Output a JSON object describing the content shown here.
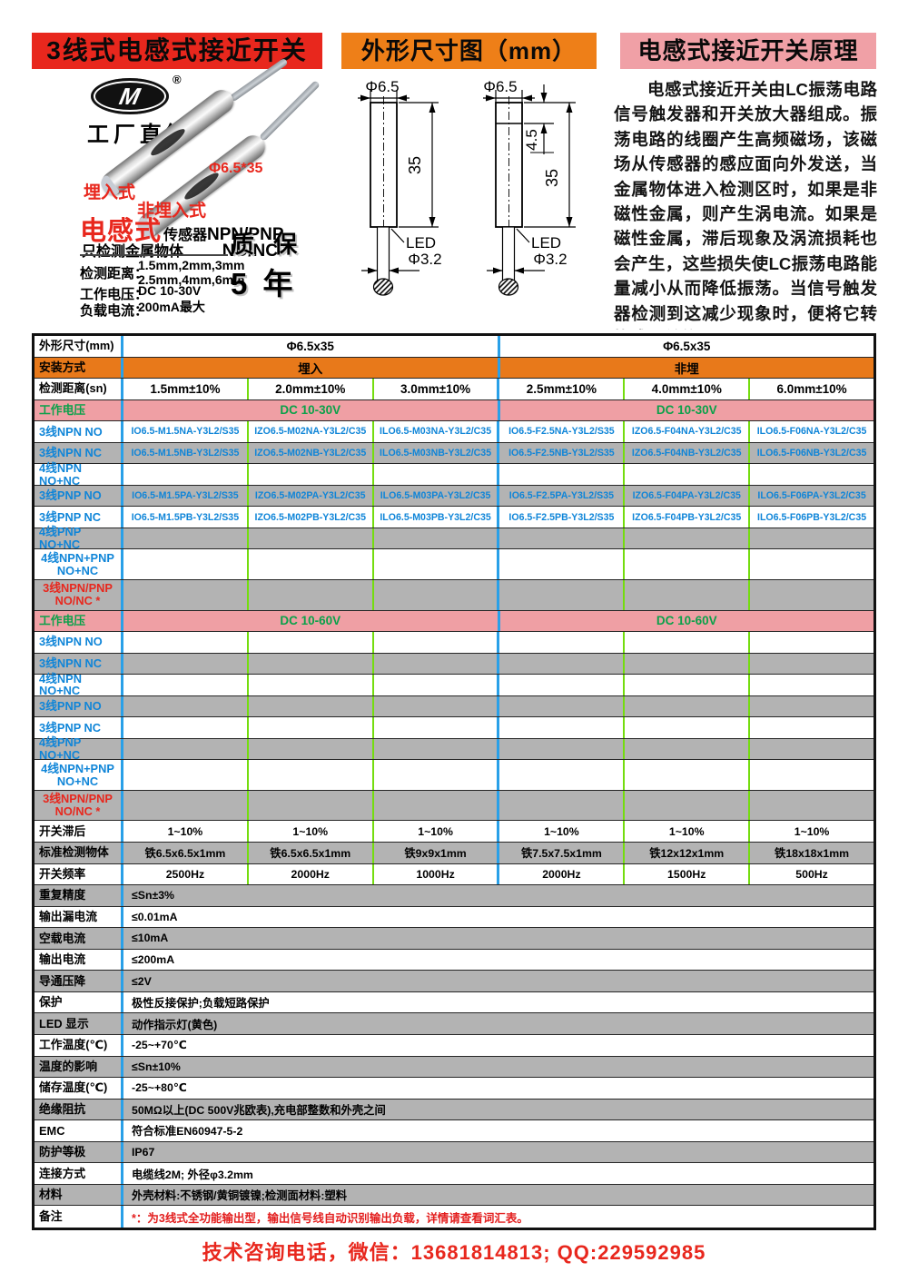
{
  "colors": {
    "header_red": "#e8271d",
    "header_orange": "#ee7f18",
    "header_pink": "#f0a0a6",
    "accent_red": "#e8271d",
    "row_gray": "#b3b3b3",
    "row_orange": "#e8791a",
    "row_pink": "#ef9fa4",
    "model_blue": "#0f85d8",
    "voltage_green": "#0ba14a",
    "divider_blue": "#29a0e8",
    "divider_green": "#74dd0e"
  },
  "headers": {
    "left": "3线式电感式接近开关",
    "mid": "外形尺寸图（mm）",
    "right": "电感式接近开关原理"
  },
  "brand": {
    "logo_text": "M",
    "registered": "®",
    "slogan": "工厂直销"
  },
  "product": {
    "flush": "埋入式",
    "nonflush": "非埋入式",
    "size": "Φ6.5*35",
    "type_big": "电感式",
    "type_small": "传感器",
    "outputs": "NPN/PNP",
    "detect": "只检测金属物体",
    "contacts": "NO/NC",
    "warranty_line1": "质 保",
    "warranty_line2": "5 年",
    "specs": [
      {
        "label": "检测距离：",
        "value": "1.5mm,2mm,3mm\n2.5mm,4mm,6mm"
      },
      {
        "label": "工作电压：",
        "value": "DC 10-30V"
      },
      {
        "label": "负载电流：",
        "value": "200mA最大"
      }
    ]
  },
  "dims": {
    "a": {
      "dia": "Φ6.5",
      "length": "35",
      "led": "LED",
      "cable": "Φ3.2"
    },
    "b": {
      "dia": "Φ6.5",
      "head": "4.5",
      "length": "35",
      "led": "LED",
      "cable": "Φ3.2"
    }
  },
  "principle": {
    "text": "电感式接近开关由LC振荡电路信号触发器和开关放大器组成。振荡电路的线圈产生高频磁场，该磁场从传感器的感应面向外发送，当金属物体进入检测区时，如果是非磁性金属，则产生涡电流。如果是磁性金属，滞后现象及涡流损耗也会产生，这些损失使LC振荡电路能量减小从而降低振荡。当信号触发器检测到这减少现象时，便将它转换成开关信号。"
  },
  "table": {
    "rows": [
      {
        "label": "外形尺寸(mm)",
        "bg": "w",
        "cells": [
          {
            "t": "Φ6.5x35",
            "s": 3,
            "c": "big"
          },
          {
            "t": "Φ6.5x35",
            "s": 3,
            "c": "big"
          }
        ]
      },
      {
        "label": "安装方式",
        "bg": "orange",
        "cells": [
          {
            "t": "埋入",
            "s": 3,
            "c": "big"
          },
          {
            "t": "非埋",
            "s": 3,
            "c": "big"
          }
        ]
      },
      {
        "label": "检测距离(sn)",
        "bg": "w",
        "cells": [
          {
            "t": "1.5mm±10%",
            "c": "big"
          },
          {
            "t": "2.0mm±10%",
            "c": "big"
          },
          {
            "t": "3.0mm±10%",
            "c": "big"
          },
          {
            "t": "2.5mm±10%",
            "c": "big"
          },
          {
            "t": "4.0mm±10%",
            "c": "big"
          },
          {
            "t": "6.0mm±10%",
            "c": "big"
          }
        ]
      },
      {
        "label": "工作电压",
        "lc": "green",
        "bg": "pink",
        "cells": [
          {
            "t": "DC 10-30V",
            "s": 3,
            "c": "green"
          },
          {
            "t": "DC 10-30V",
            "s": 3,
            "c": "green"
          }
        ]
      },
      {
        "label": "3线NPN NO",
        "lc": "blue",
        "bg": "w",
        "cells": [
          {
            "t": "IO6.5-M1.5NA-Y3L2/S35",
            "c": "blue"
          },
          {
            "t": "IZO6.5-M02NA-Y3L2/C35",
            "c": "blue"
          },
          {
            "t": "ILO6.5-M03NA-Y3L2/C35",
            "c": "blue"
          },
          {
            "t": "IO6.5-F2.5NA-Y3L2/S35",
            "c": "blue"
          },
          {
            "t": "IZO6.5-F04NA-Y3L2/C35",
            "c": "blue"
          },
          {
            "t": "ILO6.5-F06NA-Y3L2/C35",
            "c": "blue"
          }
        ]
      },
      {
        "label": "3线NPN NC",
        "lc": "blue",
        "bg": "g",
        "cells": [
          {
            "t": "IO6.5-M1.5NB-Y3L2/S35",
            "c": "blue"
          },
          {
            "t": "IZO6.5-M02NB-Y3L2/C35",
            "c": "blue"
          },
          {
            "t": "ILO6.5-M03NB-Y3L2/C35",
            "c": "blue"
          },
          {
            "t": "IO6.5-F2.5NB-Y3L2/S35",
            "c": "blue"
          },
          {
            "t": "IZO6.5-F04NB-Y3L2/C35",
            "c": "blue"
          },
          {
            "t": "ILO6.5-F06NB-Y3L2/C35",
            "c": "blue"
          }
        ]
      },
      {
        "label": "4线NPN NO+NC",
        "lc": "blue",
        "bg": "w",
        "cells": [
          {},
          {},
          {},
          {},
          {},
          {}
        ]
      },
      {
        "label": "3线PNP NO",
        "lc": "blue",
        "bg": "g",
        "cells": [
          {
            "t": "IO6.5-M1.5PA-Y3L2/S35",
            "c": "blue"
          },
          {
            "t": "IZO6.5-M02PA-Y3L2/C35",
            "c": "blue"
          },
          {
            "t": "ILO6.5-M03PA-Y3L2/C35",
            "c": "blue"
          },
          {
            "t": "IO6.5-F2.5PA-Y3L2/S35",
            "c": "blue"
          },
          {
            "t": "IZO6.5-F04PA-Y3L2/C35",
            "c": "blue"
          },
          {
            "t": "ILO6.5-F06PA-Y3L2/C35",
            "c": "blue"
          }
        ]
      },
      {
        "label": "3线PNP NC",
        "lc": "blue",
        "bg": "w",
        "cells": [
          {
            "t": "IO6.5-M1.5PB-Y3L2/S35",
            "c": "blue"
          },
          {
            "t": "IZO6.5-M02PB-Y3L2/C35",
            "c": "blue"
          },
          {
            "t": "ILO6.5-M03PB-Y3L2/C35",
            "c": "blue"
          },
          {
            "t": "IO6.5-F2.5PB-Y3L2/S35",
            "c": "blue"
          },
          {
            "t": "IZO6.5-F04PB-Y3L2/C35",
            "c": "blue"
          },
          {
            "t": "ILO6.5-F06PB-Y3L2/C35",
            "c": "blue"
          }
        ]
      },
      {
        "label": "4线PNP NO+NC",
        "lc": "blue",
        "bg": "g",
        "cells": [
          {},
          {},
          {},
          {},
          {},
          {}
        ]
      },
      {
        "label": "4线NPN+PNP\nNO+NC",
        "lc": "blue",
        "bg": "w",
        "tall": true,
        "cells": [
          {},
          {},
          {},
          {},
          {},
          {}
        ]
      },
      {
        "label": "3线NPN/PNP\nNO/NC *",
        "lc": "red",
        "bg": "g",
        "tall": true,
        "cells": [
          {},
          {},
          {},
          {},
          {},
          {}
        ]
      },
      {
        "label": "工作电压",
        "lc": "green",
        "bg": "pink",
        "cells": [
          {
            "t": "DC 10-60V",
            "s": 3,
            "c": "green"
          },
          {
            "t": "DC 10-60V",
            "s": 3,
            "c": "green"
          }
        ]
      },
      {
        "label": "3线NPN NO",
        "lc": "blue",
        "bg": "w",
        "cells": [
          {},
          {},
          {},
          {},
          {},
          {}
        ]
      },
      {
        "label": "3线NPN NC",
        "lc": "blue",
        "bg": "g",
        "cells": [
          {},
          {},
          {},
          {},
          {},
          {}
        ]
      },
      {
        "label": "4线NPN NO+NC",
        "lc": "blue",
        "bg": "w",
        "cells": [
          {},
          {},
          {},
          {},
          {},
          {}
        ]
      },
      {
        "label": "3线PNP NO",
        "lc": "blue",
        "bg": "g",
        "cells": [
          {},
          {},
          {},
          {},
          {},
          {}
        ]
      },
      {
        "label": "3线PNP NC",
        "lc": "blue",
        "bg": "w",
        "cells": [
          {},
          {},
          {},
          {},
          {},
          {}
        ]
      },
      {
        "label": "4线PNP NO+NC",
        "lc": "blue",
        "bg": "g",
        "cells": [
          {},
          {},
          {},
          {},
          {},
          {}
        ]
      },
      {
        "label": "4线NPN+PNP\nNO+NC",
        "lc": "blue",
        "bg": "w",
        "tall": true,
        "cells": [
          {},
          {},
          {},
          {},
          {},
          {}
        ]
      },
      {
        "label": "3线NPN/PNP\nNO/NC *",
        "lc": "red",
        "bg": "g",
        "tall": true,
        "cells": [
          {},
          {},
          {},
          {},
          {},
          {}
        ]
      },
      {
        "label": "开关滞后",
        "bg": "w",
        "cells": [
          {
            "t": "1~10%"
          },
          {
            "t": "1~10%"
          },
          {
            "t": "1~10%"
          },
          {
            "t": "1~10%"
          },
          {
            "t": "1~10%"
          },
          {
            "t": "1~10%"
          }
        ]
      },
      {
        "label": "标准检测物体",
        "bg": "g",
        "cells": [
          {
            "t": "铁6.5x6.5x1mm"
          },
          {
            "t": "铁6.5x6.5x1mm"
          },
          {
            "t": "铁9x9x1mm"
          },
          {
            "t": "铁7.5x7.5x1mm"
          },
          {
            "t": "铁12x12x1mm"
          },
          {
            "t": "铁18x18x1mm"
          }
        ]
      },
      {
        "label": "开关频率",
        "bg": "w",
        "cells": [
          {
            "t": "2500Hz"
          },
          {
            "t": "2000Hz"
          },
          {
            "t": "1000Hz"
          },
          {
            "t": "2000Hz"
          },
          {
            "t": "1500Hz"
          },
          {
            "t": "500Hz"
          }
        ]
      },
      {
        "label": "重复精度",
        "bg": "g",
        "cells": [
          {
            "t": "≤Sn±3%",
            "s": 6,
            "a": "l"
          }
        ]
      },
      {
        "label": "输出漏电流",
        "bg": "w",
        "cells": [
          {
            "t": "≤0.01mA",
            "s": 6,
            "a": "l"
          }
        ]
      },
      {
        "label": "空载电流",
        "bg": "g",
        "cells": [
          {
            "t": "≤10mA",
            "s": 6,
            "a": "l"
          }
        ]
      },
      {
        "label": "输出电流",
        "bg": "w",
        "cells": [
          {
            "t": "≤200mA",
            "s": 6,
            "a": "l"
          }
        ]
      },
      {
        "label": "导通压降",
        "bg": "g",
        "cells": [
          {
            "t": "≤2V",
            "s": 6,
            "a": "l"
          }
        ]
      },
      {
        "label": "保护",
        "bg": "w",
        "cells": [
          {
            "t": "极性反接保护;负载短路保护",
            "s": 6,
            "a": "l"
          }
        ]
      },
      {
        "label": "LED 显示",
        "bg": "g",
        "cells": [
          {
            "t": "动作指示灯(黄色)",
            "s": 6,
            "a": "l"
          }
        ]
      },
      {
        "label": "工作温度(℃)",
        "bg": "w",
        "cells": [
          {
            "t": "-25~+70℃",
            "s": 6,
            "a": "l"
          }
        ]
      },
      {
        "label": "温度的影响",
        "bg": "g",
        "cells": [
          {
            "t": "≤Sn±10%",
            "s": 6,
            "a": "l"
          }
        ]
      },
      {
        "label": "储存温度(℃)",
        "bg": "w",
        "cells": [
          {
            "t": "-25~+80℃",
            "s": 6,
            "a": "l"
          }
        ]
      },
      {
        "label": "绝缘阻抗",
        "bg": "g",
        "cells": [
          {
            "t": "50MΩ以上(DC 500V兆欧表),充电部整数和外壳之间",
            "s": 6,
            "a": "l"
          }
        ]
      },
      {
        "label": "EMC",
        "bg": "w",
        "cells": [
          {
            "t": "符合标准EN60947-5-2",
            "s": 6,
            "a": "l"
          }
        ]
      },
      {
        "label": "防护等极",
        "bg": "g",
        "cells": [
          {
            "t": "IP67",
            "s": 6,
            "a": "l"
          }
        ]
      },
      {
        "label": "连接方式",
        "bg": "w",
        "cells": [
          {
            "t": "电缆线2M; 外径φ3.2mm",
            "s": 6,
            "a": "l"
          }
        ]
      },
      {
        "label": "材料",
        "bg": "g",
        "cells": [
          {
            "t": "外壳材料:不锈钢/黄铜镀镍;检测面材料:塑料",
            "s": 6,
            "a": "l"
          }
        ]
      },
      {
        "label": "备注",
        "bg": "w",
        "cells": [
          {
            "t": "*：为3线式全功能输出型，输出信号线自动识别输出负载，详情请查看词汇表。",
            "s": 6,
            "a": "l",
            "c": "red"
          }
        ]
      }
    ]
  },
  "footer": {
    "contact": "技术咨询电话，微信：13681814813; QQ:229592985"
  }
}
